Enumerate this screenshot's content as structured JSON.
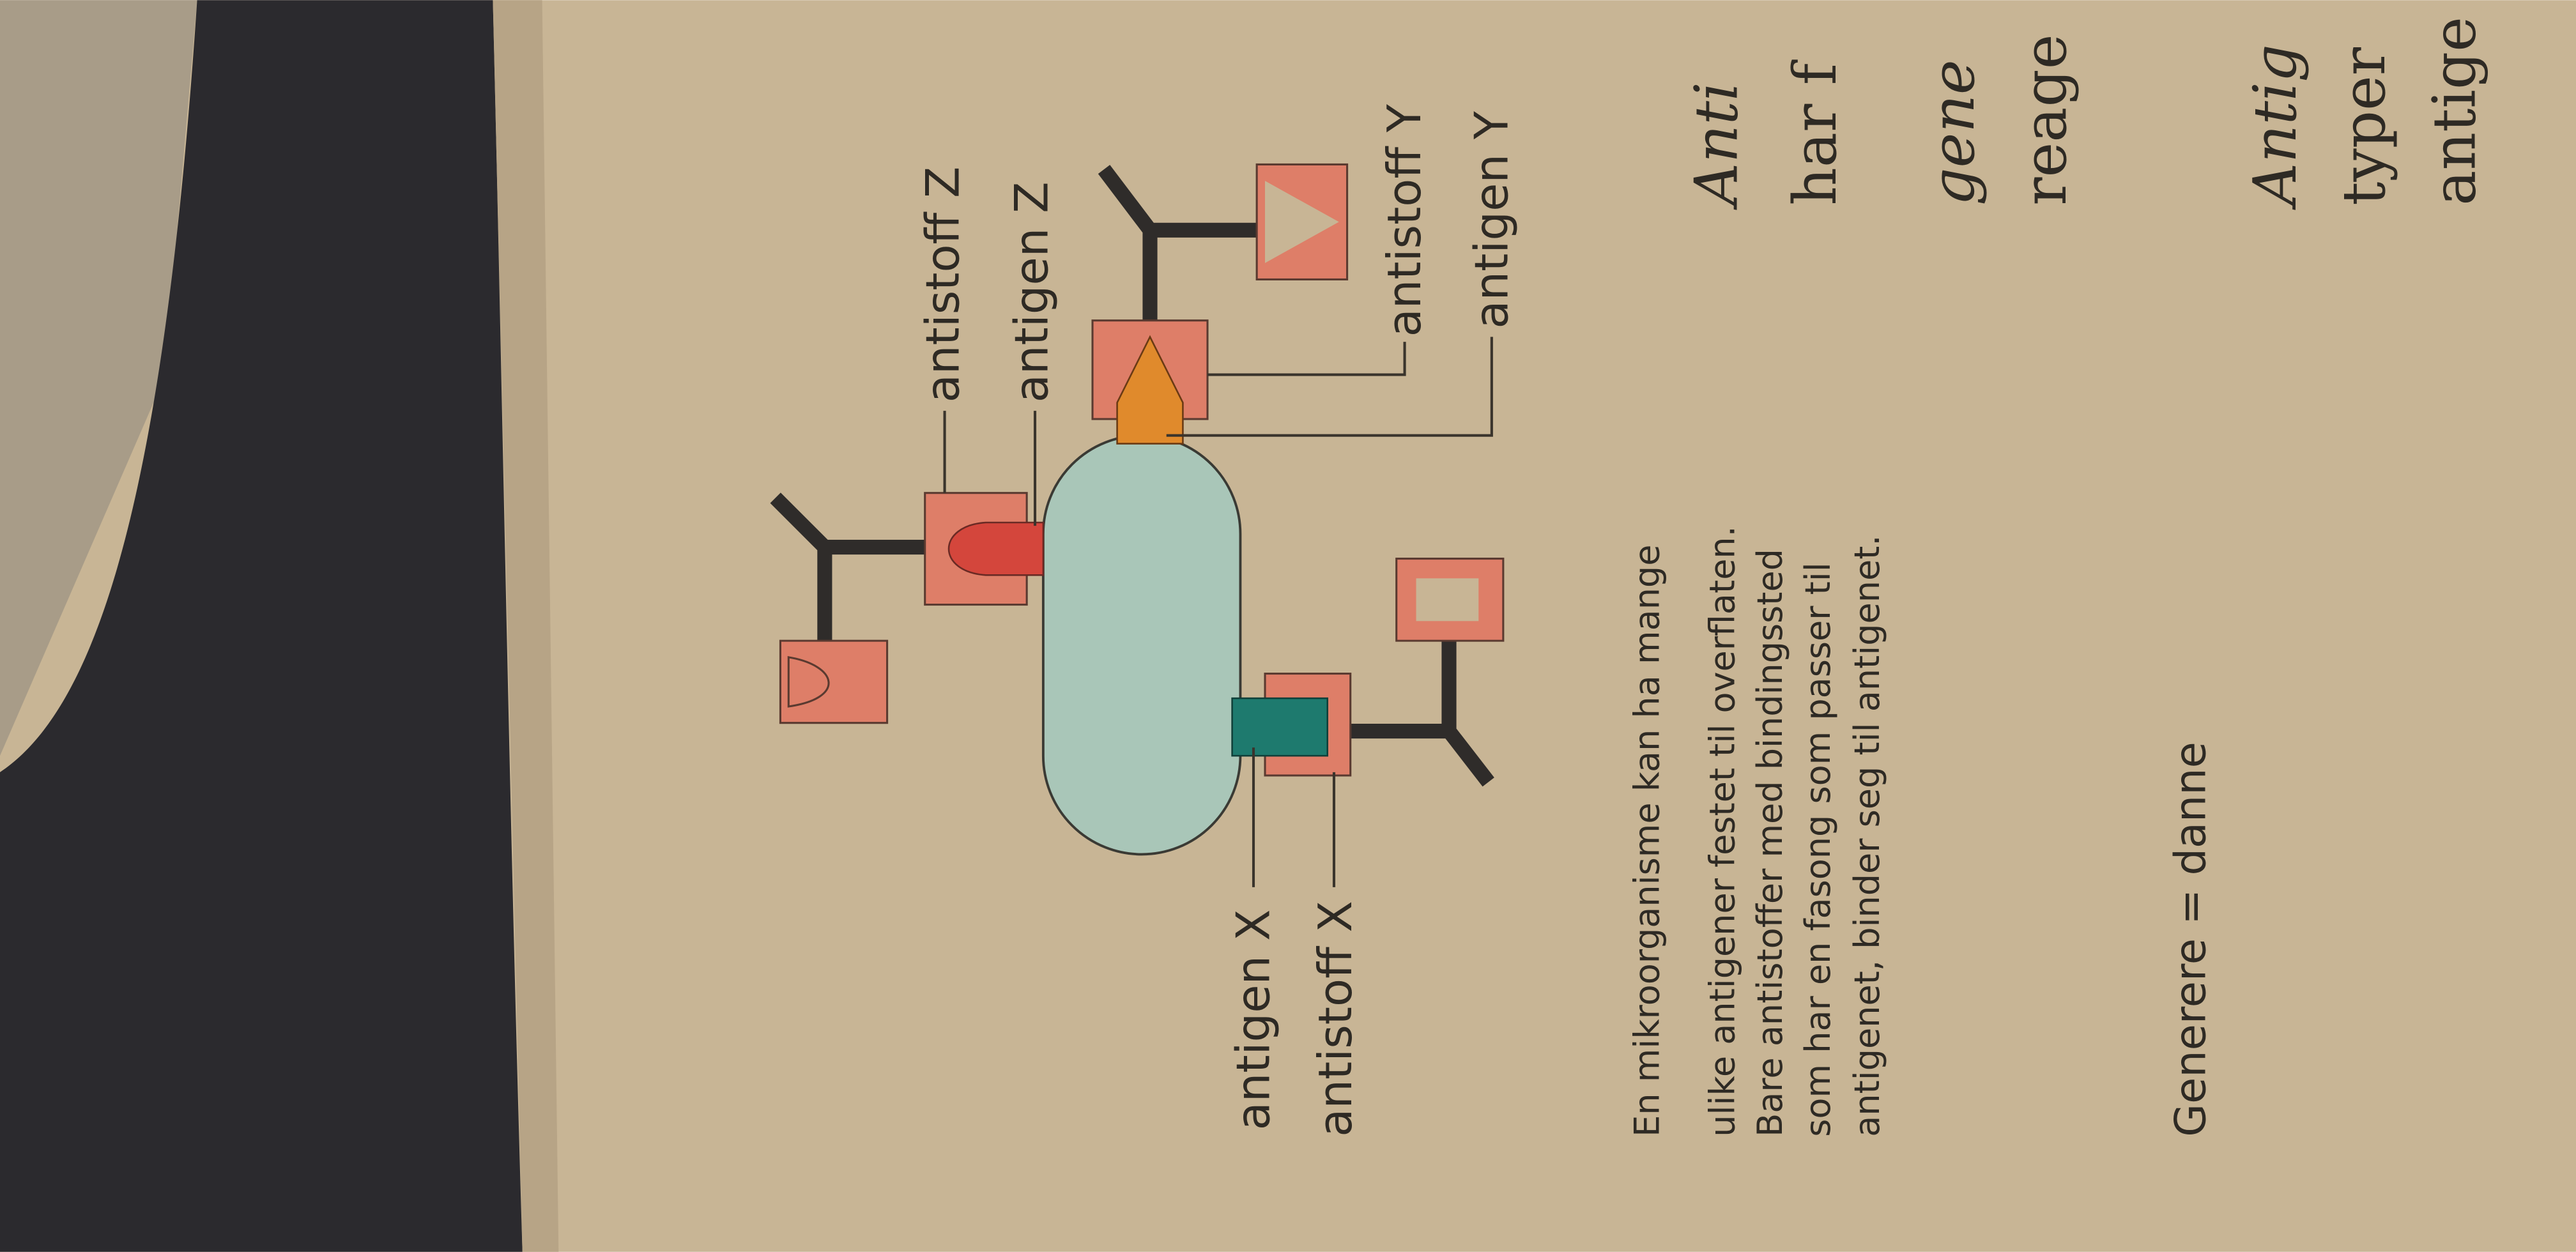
{
  "diagram": {
    "labels": {
      "antistoff_z": "antistoff Z",
      "antigen_z": "antigen Z",
      "antistoff_y": "antistoff Y",
      "antigen_y": "antigen Y",
      "antigen_x": "antigen X",
      "antistoff_x": "antistoff X"
    },
    "caption": [
      "En mikroorganisme kan ha mange",
      "ulike antigener festet til overflaten.",
      "Bare antistoffer med bindingssted",
      "som har en fasong som passer til",
      "antigenet, binder seg til antigenet."
    ],
    "note": "Generere = danne"
  },
  "body_text": [
    "Anti",
    "har f",
    "gene",
    "reage",
    "Antig",
    "typer",
    "antige"
  ]
}
